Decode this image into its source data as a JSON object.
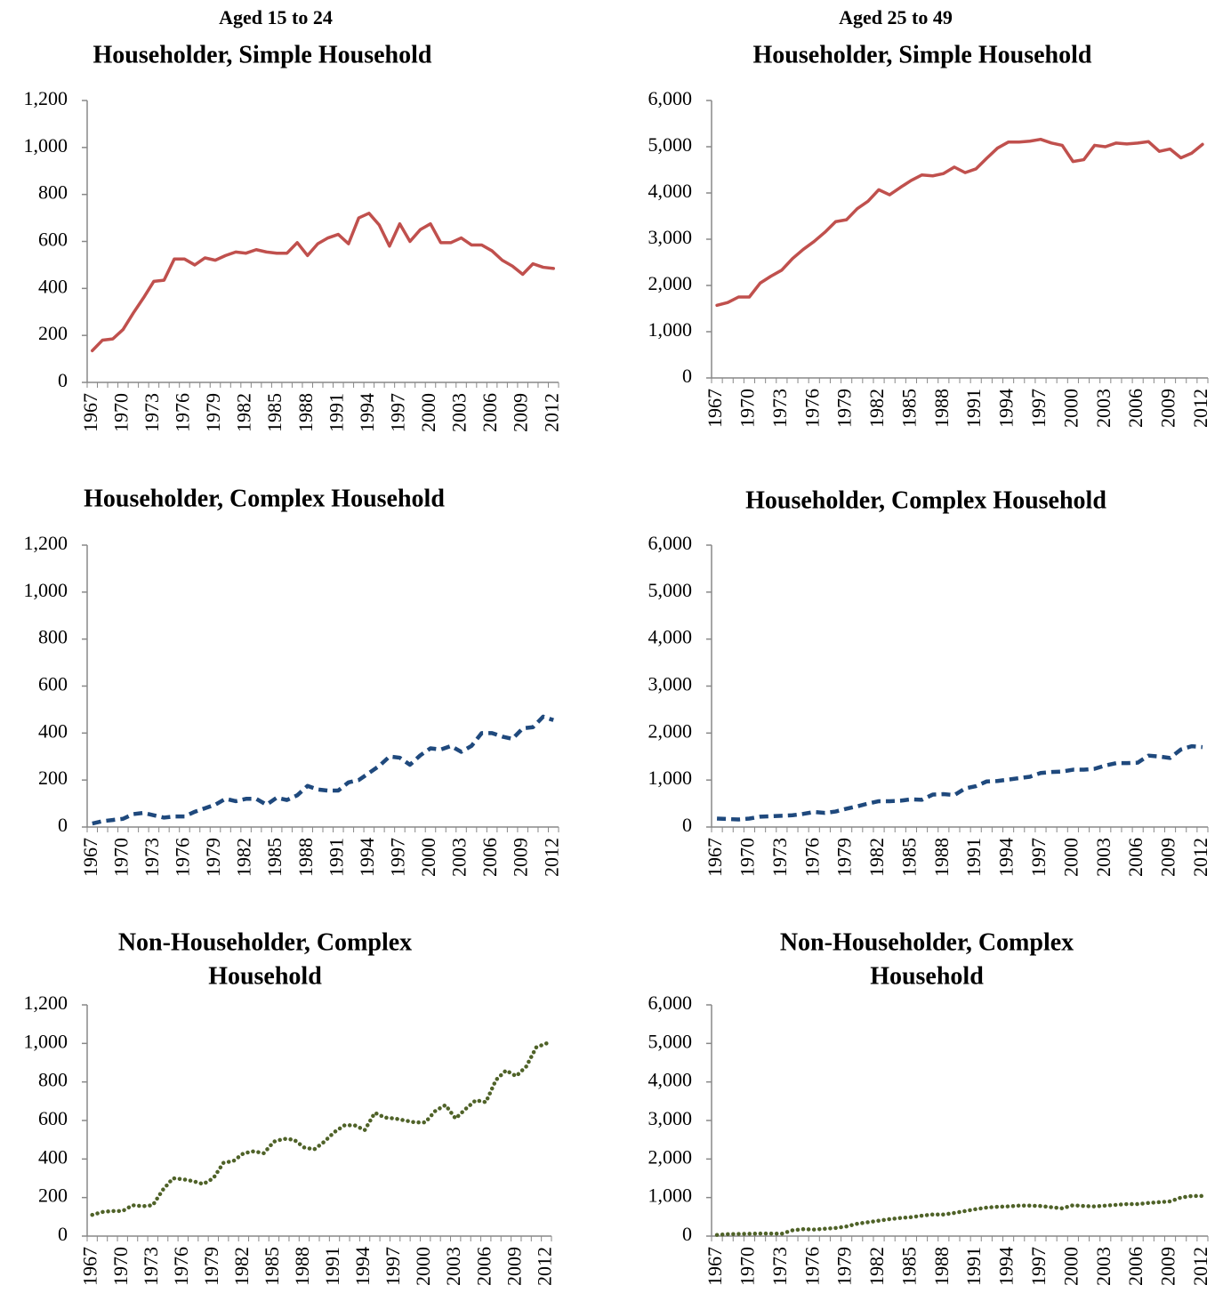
{
  "column_titles": [
    "Aged 15 to 24",
    "Aged 25 to 49"
  ],
  "chart_data": [
    {
      "type": "line",
      "title": [
        "Householder, Simple Household"
      ],
      "color": "#c0504d",
      "line_style": "solid",
      "categories": [
        "1967",
        null,
        null,
        "1970",
        null,
        null,
        "1973",
        null,
        null,
        "1976",
        null,
        null,
        "1979",
        null,
        null,
        "1982",
        null,
        null,
        "1985",
        null,
        null,
        "1988",
        null,
        null,
        "1991",
        null,
        null,
        "1994",
        null,
        null,
        "1997",
        null,
        null,
        "2000",
        null,
        null,
        "2003",
        null,
        null,
        "2006",
        null,
        null,
        "2009",
        null,
        null,
        "2012"
      ],
      "values": [
        135,
        180,
        185,
        225,
        295,
        360,
        430,
        435,
        525,
        525,
        500,
        530,
        520,
        540,
        555,
        550,
        565,
        555,
        550,
        550,
        595,
        540,
        590,
        615,
        630,
        590,
        700,
        720,
        670,
        580,
        675,
        600,
        650,
        675,
        595,
        595,
        615,
        585,
        585,
        560,
        520,
        495,
        460,
        505,
        490,
        485
      ],
      "ylim": [
        0,
        1200
      ],
      "yticks": [
        0,
        200,
        400,
        600,
        800,
        {
          "value": 1000,
          "label": "1,000"
        },
        {
          "value": 1200,
          "label": "1,200"
        }
      ]
    },
    {
      "type": "line",
      "title": [
        "Householder, Simple Household"
      ],
      "color": "#c0504d",
      "line_style": "solid",
      "categories": [
        "1967",
        null,
        null,
        "1970",
        null,
        null,
        "1973",
        null,
        null,
        "1976",
        null,
        null,
        "1979",
        null,
        null,
        "1982",
        null,
        null,
        "1985",
        null,
        null,
        "1988",
        null,
        null,
        "1991",
        null,
        null,
        "1994",
        null,
        null,
        "1997",
        null,
        null,
        "2000",
        null,
        null,
        "2003",
        null,
        null,
        "2006",
        null,
        null,
        "2009",
        null,
        null,
        "2012"
      ],
      "values": [
        1570,
        1630,
        1750,
        1750,
        2050,
        2200,
        2330,
        2580,
        2780,
        2950,
        3150,
        3380,
        3420,
        3660,
        3820,
        4070,
        3960,
        4120,
        4270,
        4390,
        4370,
        4420,
        4560,
        4440,
        4520,
        4750,
        4970,
        5100,
        5100,
        5120,
        5160,
        5080,
        5030,
        4680,
        4720,
        5030,
        5000,
        5080,
        5060,
        5080,
        5110,
        4900,
        4950,
        4760,
        4860,
        5050
      ],
      "ylim": [
        0,
        6000
      ],
      "yticks": [
        0,
        {
          "value": 1000,
          "label": "1,000"
        },
        {
          "value": 2000,
          "label": "2,000"
        },
        {
          "value": 3000,
          "label": "3,000"
        },
        {
          "value": 4000,
          "label": "4,000"
        },
        {
          "value": 5000,
          "label": "5,000"
        },
        {
          "value": 6000,
          "label": "6,000"
        }
      ]
    },
    {
      "type": "line",
      "title": [
        "Householder, Complex Household"
      ],
      "color": "#1f497d",
      "line_style": "dashed",
      "categories": [
        "1967",
        null,
        null,
        "1970",
        null,
        null,
        "1973",
        null,
        null,
        "1976",
        null,
        null,
        "1979",
        null,
        null,
        "1982",
        null,
        null,
        "1985",
        null,
        null,
        "1988",
        null,
        null,
        "1991",
        null,
        null,
        "1994",
        null,
        null,
        "1997",
        null,
        null,
        "2000",
        null,
        null,
        "2003",
        null,
        null,
        "2006",
        null,
        null,
        "2009",
        null,
        null,
        "2012"
      ],
      "values": [
        15,
        25,
        30,
        35,
        55,
        60,
        50,
        40,
        45,
        45,
        65,
        80,
        95,
        120,
        110,
        120,
        120,
        95,
        125,
        115,
        135,
        175,
        160,
        155,
        155,
        190,
        200,
        230,
        260,
        300,
        295,
        265,
        305,
        335,
        330,
        345,
        320,
        345,
        400,
        400,
        385,
        375,
        420,
        425,
        470,
        455
      ],
      "ylim": [
        0,
        1200
      ],
      "yticks": [
        0,
        200,
        400,
        600,
        800,
        {
          "value": 1000,
          "label": "1,000"
        },
        {
          "value": 1200,
          "label": "1,200"
        }
      ]
    },
    {
      "type": "line",
      "title": [
        "Householder, Complex Household"
      ],
      "color": "#1f497d",
      "line_style": "dashed",
      "categories": [
        "1967",
        null,
        null,
        "1970",
        null,
        null,
        "1973",
        null,
        null,
        "1976",
        null,
        null,
        "1979",
        null,
        null,
        "1982",
        null,
        null,
        "1985",
        null,
        null,
        "1988",
        null,
        null,
        "1991",
        null,
        null,
        "1994",
        null,
        null,
        "1997",
        null,
        null,
        "2000",
        null,
        null,
        "2003",
        null,
        null,
        "2006",
        null,
        null,
        "2009",
        null,
        null,
        "2012"
      ],
      "values": [
        180,
        170,
        160,
        180,
        220,
        230,
        240,
        250,
        280,
        320,
        300,
        330,
        390,
        440,
        500,
        550,
        550,
        560,
        590,
        580,
        690,
        700,
        680,
        820,
        870,
        970,
        980,
        1010,
        1040,
        1070,
        1150,
        1170,
        1180,
        1220,
        1220,
        1240,
        1310,
        1360,
        1360,
        1370,
        1520,
        1500,
        1470,
        1650,
        1720,
        1700
      ],
      "ylim": [
        0,
        6000
      ],
      "yticks": [
        0,
        {
          "value": 1000,
          "label": "1,000"
        },
        {
          "value": 2000,
          "label": "2,000"
        },
        {
          "value": 3000,
          "label": "3,000"
        },
        {
          "value": 4000,
          "label": "4,000"
        },
        {
          "value": 5000,
          "label": "5,000"
        },
        {
          "value": 6000,
          "label": "6,000"
        }
      ]
    },
    {
      "type": "line",
      "title": [
        "Non-Householder, Complex",
        "Household"
      ],
      "color": "#4f6228",
      "line_style": "dotted",
      "categories": [
        "1967",
        null,
        null,
        "1970",
        null,
        null,
        "1973",
        null,
        null,
        "1976",
        null,
        null,
        "1979",
        null,
        null,
        "1982",
        null,
        null,
        "1985",
        null,
        null,
        "1988",
        null,
        null,
        "1991",
        null,
        null,
        "1994",
        null,
        null,
        "1997",
        null,
        null,
        "2000",
        null,
        null,
        "2003",
        null,
        null,
        "2006",
        null,
        null,
        "2009",
        null,
        null,
        "2012"
      ],
      "values": [
        110,
        125,
        130,
        130,
        160,
        155,
        160,
        240,
        300,
        295,
        285,
        270,
        300,
        380,
        390,
        430,
        440,
        430,
        490,
        505,
        500,
        460,
        450,
        490,
        540,
        575,
        575,
        550,
        640,
        615,
        610,
        600,
        590,
        590,
        650,
        680,
        610,
        660,
        705,
        695,
        810,
        860,
        830,
        880,
        980,
        1000
      ],
      "ylim": [
        0,
        1200
      ],
      "yticks": [
        0,
        200,
        400,
        600,
        800,
        {
          "value": 1000,
          "label": "1,000"
        },
        {
          "value": 1200,
          "label": "1,200"
        }
      ]
    },
    {
      "type": "line",
      "title": [
        "Non-Householder, Complex",
        "Household"
      ],
      "color": "#4f6228",
      "line_style": "dotted",
      "categories": [
        "1967",
        null,
        null,
        "1970",
        null,
        null,
        "1973",
        null,
        null,
        "1976",
        null,
        null,
        "1979",
        null,
        null,
        "1982",
        null,
        null,
        "1985",
        null,
        null,
        "1988",
        null,
        null,
        "1991",
        null,
        null,
        "1994",
        null,
        null,
        "1997",
        null,
        null,
        "2000",
        null,
        null,
        "2003",
        null,
        null,
        "2006",
        null,
        null,
        "2009",
        null,
        null,
        "2012"
      ],
      "values": [
        30,
        50,
        55,
        60,
        65,
        65,
        60,
        150,
        180,
        170,
        190,
        210,
        250,
        320,
        360,
        400,
        440,
        470,
        490,
        530,
        560,
        560,
        600,
        650,
        700,
        740,
        760,
        770,
        790,
        790,
        780,
        750,
        720,
        800,
        780,
        770,
        790,
        810,
        830,
        830,
        860,
        880,
        900,
        1000,
        1040,
        1040
      ],
      "ylim": [
        0,
        6000
      ],
      "yticks": [
        0,
        {
          "value": 1000,
          "label": "1,000"
        },
        {
          "value": 2000,
          "label": "2,000"
        },
        {
          "value": 3000,
          "label": "3,000"
        },
        {
          "value": 4000,
          "label": "4,000"
        },
        {
          "value": 5000,
          "label": "5,000"
        },
        {
          "value": 6000,
          "label": "6,000"
        }
      ]
    }
  ]
}
